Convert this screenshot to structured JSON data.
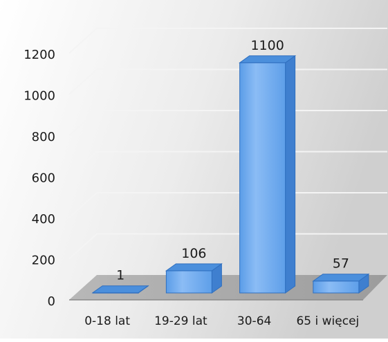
{
  "chart_data": {
    "type": "bar",
    "style": "3d-clustered-column",
    "categories": [
      "0-18 lat",
      "19-29 lat",
      "30-64",
      "65 i więcej"
    ],
    "values": [
      1,
      106,
      1100,
      57
    ],
    "data_labels": [
      "1",
      "106",
      "1100",
      "57"
    ],
    "y_ticks": [
      "0",
      "200",
      "400",
      "600",
      "800",
      "1000",
      "1200"
    ],
    "ylim": [
      0,
      1200
    ],
    "y_step": 200,
    "grid": true,
    "legend": "none",
    "title": "",
    "xlabel": "",
    "ylabel": ""
  },
  "colors": {
    "bar_front": "#6aaaf2",
    "bar_front_light": "#a4cdf8",
    "bar_top": "#4b8fdc",
    "bar_side": "#3f7fcf",
    "bar_edge": "#2f6fbf",
    "background_light": "#ffffff",
    "background_dark": "#d4d4d4",
    "floor": "#a8a8a8",
    "gridline": "#f4f4f4",
    "axis": "#8a8a8a"
  }
}
